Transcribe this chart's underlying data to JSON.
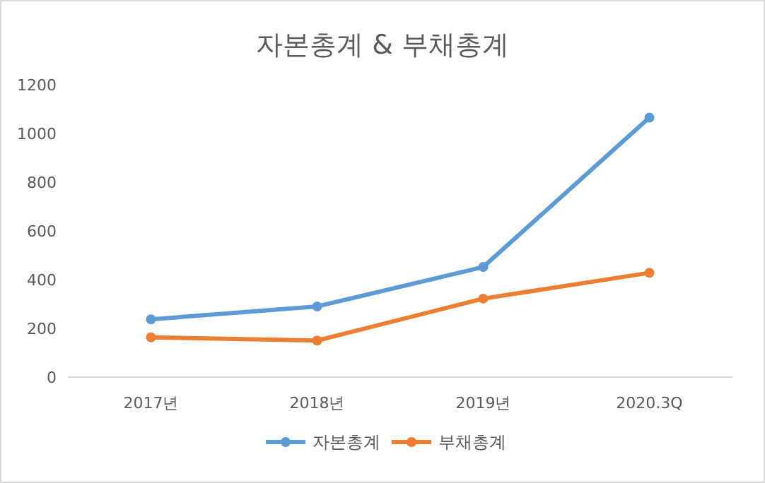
{
  "chart_data": {
    "type": "line",
    "title": "자본총계 & 부채총계",
    "categories": [
      "2017년",
      "2018년",
      "2019년",
      "2020.3Q"
    ],
    "series": [
      {
        "name": "자본총계",
        "color": "#5b9bd5",
        "values": [
          237,
          290,
          452,
          1065
        ]
      },
      {
        "name": "부채총계",
        "color": "#ed7d31",
        "values": [
          163,
          150,
          322,
          428
        ]
      }
    ],
    "ylim": [
      0,
      1200
    ],
    "yticks": [
      0,
      200,
      400,
      600,
      800,
      1000,
      1200
    ],
    "grid": false,
    "legend": "bottom",
    "marker": "circle",
    "line_style": "solid"
  }
}
